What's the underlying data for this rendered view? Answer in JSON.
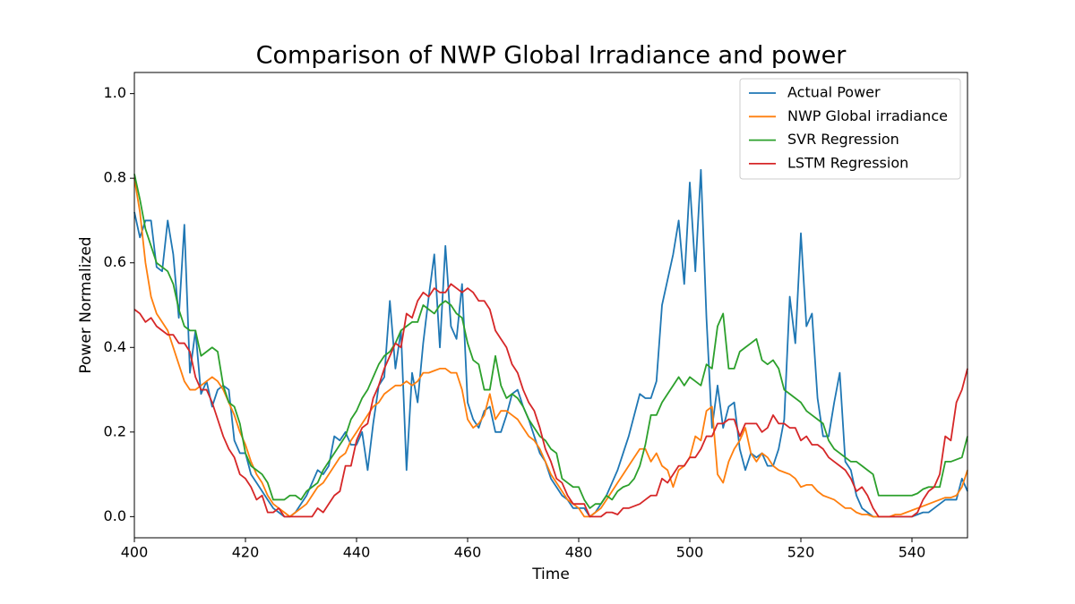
{
  "chart_data": {
    "type": "line",
    "title": "Comparison of NWP Global Irradiance and power",
    "x_label": "Time",
    "y_label": "Power Normalized",
    "x": [
      400,
      401,
      402,
      403,
      404,
      405,
      406,
      407,
      408,
      409,
      410,
      411,
      412,
      413,
      414,
      415,
      416,
      417,
      418,
      419,
      420,
      421,
      422,
      423,
      424,
      425,
      426,
      427,
      428,
      429,
      430,
      431,
      432,
      433,
      434,
      435,
      436,
      437,
      438,
      439,
      440,
      441,
      442,
      443,
      444,
      445,
      446,
      447,
      448,
      449,
      450,
      451,
      452,
      453,
      454,
      455,
      456,
      457,
      458,
      459,
      460,
      461,
      462,
      463,
      464,
      465,
      466,
      467,
      468,
      469,
      470,
      471,
      472,
      473,
      474,
      475,
      476,
      477,
      478,
      479,
      480,
      481,
      482,
      483,
      484,
      485,
      486,
      487,
      488,
      489,
      490,
      491,
      492,
      493,
      494,
      495,
      496,
      497,
      498,
      499,
      500,
      501,
      502,
      503,
      504,
      505,
      506,
      507,
      508,
      509,
      510,
      511,
      512,
      513,
      514,
      515,
      516,
      517,
      518,
      519,
      520,
      521,
      522,
      523,
      524,
      525,
      526,
      527,
      528,
      529,
      530,
      531,
      532,
      533,
      534,
      535,
      536,
      537,
      538,
      539,
      540,
      541,
      542,
      543,
      544,
      545,
      546,
      547,
      548,
      549,
      550
    ],
    "series": [
      {
        "name": "Actual Power",
        "color": "#1f77b4",
        "values": [
          0.72,
          0.66,
          0.7,
          0.7,
          0.59,
          0.58,
          0.7,
          0.62,
          0.47,
          0.69,
          0.34,
          0.44,
          0.29,
          0.32,
          0.26,
          0.3,
          0.31,
          0.3,
          0.18,
          0.15,
          0.15,
          0.1,
          0.08,
          0.06,
          0.04,
          0.02,
          0.01,
          0.0,
          0.0,
          0.01,
          0.03,
          0.05,
          0.08,
          0.11,
          0.1,
          0.12,
          0.19,
          0.18,
          0.2,
          0.17,
          0.17,
          0.2,
          0.11,
          0.22,
          0.31,
          0.33,
          0.51,
          0.35,
          0.44,
          0.11,
          0.34,
          0.27,
          0.41,
          0.52,
          0.62,
          0.4,
          0.64,
          0.45,
          0.42,
          0.55,
          0.27,
          0.23,
          0.21,
          0.25,
          0.26,
          0.2,
          0.2,
          0.24,
          0.29,
          0.3,
          0.26,
          0.23,
          0.19,
          0.15,
          0.13,
          0.09,
          0.07,
          0.05,
          0.04,
          0.02,
          0.02,
          0.02,
          0.0,
          0.01,
          0.03,
          0.05,
          0.08,
          0.11,
          0.15,
          0.19,
          0.24,
          0.29,
          0.28,
          0.28,
          0.32,
          0.5,
          0.56,
          0.62,
          0.7,
          0.55,
          0.79,
          0.58,
          0.82,
          0.47,
          0.21,
          0.31,
          0.21,
          0.26,
          0.27,
          0.16,
          0.11,
          0.15,
          0.14,
          0.15,
          0.12,
          0.12,
          0.16,
          0.23,
          0.52,
          0.41,
          0.67,
          0.45,
          0.48,
          0.28,
          0.19,
          0.19,
          0.27,
          0.34,
          0.13,
          0.11,
          0.05,
          0.02,
          0.01,
          0,
          0,
          0,
          0,
          0,
          0,
          0,
          0,
          0.005,
          0.01,
          0.01,
          0.02,
          0.03,
          0.04,
          0.04,
          0.04,
          0.09,
          0.06
        ]
      },
      {
        "name": "NWP Global irradiance",
        "color": "#ff7f0e",
        "values": [
          0.8,
          0.72,
          0.6,
          0.52,
          0.48,
          0.46,
          0.44,
          0.4,
          0.36,
          0.32,
          0.3,
          0.3,
          0.31,
          0.32,
          0.33,
          0.32,
          0.3,
          0.27,
          0.24,
          0.2,
          0.17,
          0.13,
          0.1,
          0.08,
          0.05,
          0.03,
          0.02,
          0.01,
          0.0,
          0.01,
          0.02,
          0.03,
          0.05,
          0.07,
          0.08,
          0.1,
          0.12,
          0.14,
          0.15,
          0.18,
          0.2,
          0.22,
          0.24,
          0.26,
          0.27,
          0.29,
          0.3,
          0.31,
          0.31,
          0.32,
          0.31,
          0.32,
          0.34,
          0.34,
          0.345,
          0.35,
          0.35,
          0.34,
          0.34,
          0.3,
          0.23,
          0.21,
          0.22,
          0.24,
          0.29,
          0.23,
          0.25,
          0.25,
          0.24,
          0.23,
          0.21,
          0.19,
          0.18,
          0.16,
          0.13,
          0.1,
          0.08,
          0.06,
          0.04,
          0.03,
          0.02,
          0.0,
          0.0,
          0.01,
          0.02,
          0.04,
          0.06,
          0.08,
          0.1,
          0.12,
          0.14,
          0.16,
          0.16,
          0.13,
          0.15,
          0.12,
          0.11,
          0.07,
          0.11,
          0.12,
          0.14,
          0.19,
          0.18,
          0.25,
          0.26,
          0.1,
          0.08,
          0.13,
          0.16,
          0.18,
          0.21,
          0.15,
          0.13,
          0.15,
          0.14,
          0.12,
          0.11,
          0.105,
          0.1,
          0.09,
          0.07,
          0.075,
          0.075,
          0.06,
          0.05,
          0.045,
          0.04,
          0.03,
          0.02,
          0.02,
          0.01,
          0.005,
          0.005,
          0,
          0,
          0,
          0,
          0.005,
          0.005,
          0.01,
          0.015,
          0.02,
          0.025,
          0.03,
          0.035,
          0.04,
          0.045,
          0.045,
          0.05,
          0.07,
          0.11
        ]
      },
      {
        "name": "SVR Regression",
        "color": "#2ca02c",
        "values": [
          0.81,
          0.75,
          0.68,
          0.64,
          0.6,
          0.59,
          0.58,
          0.55,
          0.49,
          0.45,
          0.44,
          0.44,
          0.38,
          0.39,
          0.4,
          0.39,
          0.31,
          0.27,
          0.26,
          0.22,
          0.15,
          0.12,
          0.11,
          0.1,
          0.08,
          0.04,
          0.04,
          0.04,
          0.05,
          0.05,
          0.04,
          0.06,
          0.07,
          0.08,
          0.11,
          0.13,
          0.15,
          0.17,
          0.19,
          0.23,
          0.25,
          0.28,
          0.3,
          0.33,
          0.36,
          0.38,
          0.39,
          0.41,
          0.44,
          0.45,
          0.46,
          0.46,
          0.5,
          0.49,
          0.48,
          0.5,
          0.51,
          0.5,
          0.48,
          0.47,
          0.41,
          0.37,
          0.36,
          0.3,
          0.3,
          0.38,
          0.31,
          0.28,
          0.29,
          0.28,
          0.26,
          0.23,
          0.21,
          0.19,
          0.18,
          0.16,
          0.15,
          0.09,
          0.08,
          0.07,
          0.07,
          0.04,
          0.02,
          0.03,
          0.03,
          0.05,
          0.04,
          0.06,
          0.07,
          0.075,
          0.09,
          0.12,
          0.17,
          0.24,
          0.24,
          0.27,
          0.29,
          0.31,
          0.33,
          0.31,
          0.33,
          0.32,
          0.31,
          0.36,
          0.35,
          0.45,
          0.48,
          0.35,
          0.35,
          0.39,
          0.4,
          0.41,
          0.42,
          0.37,
          0.36,
          0.37,
          0.35,
          0.3,
          0.29,
          0.28,
          0.27,
          0.25,
          0.24,
          0.23,
          0.22,
          0.18,
          0.16,
          0.15,
          0.14,
          0.13,
          0.13,
          0.12,
          0.11,
          0.1,
          0.05,
          0.05,
          0.05,
          0.05,
          0.05,
          0.05,
          0.05,
          0.055,
          0.065,
          0.07,
          0.07,
          0.07,
          0.13,
          0.13,
          0.135,
          0.14,
          0.19
        ]
      },
      {
        "name": "LSTM Regression",
        "color": "#d62728",
        "values": [
          0.49,
          0.48,
          0.46,
          0.47,
          0.45,
          0.44,
          0.43,
          0.43,
          0.41,
          0.41,
          0.39,
          0.33,
          0.3,
          0.3,
          0.27,
          0.23,
          0.19,
          0.16,
          0.14,
          0.1,
          0.09,
          0.07,
          0.04,
          0.05,
          0.01,
          0.01,
          0.02,
          0.0,
          0.0,
          0.0,
          0.0,
          0.0,
          0.0,
          0.02,
          0.01,
          0.03,
          0.05,
          0.06,
          0.12,
          0.12,
          0.18,
          0.21,
          0.22,
          0.28,
          0.31,
          0.35,
          0.38,
          0.41,
          0.4,
          0.48,
          0.47,
          0.51,
          0.53,
          0.52,
          0.54,
          0.53,
          0.53,
          0.55,
          0.54,
          0.53,
          0.54,
          0.53,
          0.51,
          0.51,
          0.49,
          0.44,
          0.42,
          0.4,
          0.36,
          0.34,
          0.3,
          0.27,
          0.25,
          0.21,
          0.16,
          0.13,
          0.09,
          0.08,
          0.05,
          0.03,
          0.03,
          0.03,
          0.0,
          0.0,
          0.0,
          0.01,
          0.01,
          0.005,
          0.02,
          0.02,
          0.025,
          0.03,
          0.04,
          0.05,
          0.05,
          0.09,
          0.08,
          0.1,
          0.12,
          0.12,
          0.14,
          0.14,
          0.16,
          0.19,
          0.19,
          0.22,
          0.22,
          0.23,
          0.23,
          0.19,
          0.22,
          0.22,
          0.22,
          0.2,
          0.21,
          0.24,
          0.22,
          0.22,
          0.21,
          0.21,
          0.18,
          0.19,
          0.17,
          0.17,
          0.16,
          0.14,
          0.13,
          0.12,
          0.11,
          0.09,
          0.06,
          0.07,
          0.05,
          0.02,
          0,
          0,
          0,
          0,
          0,
          0,
          0,
          0.01,
          0.04,
          0.06,
          0.07,
          0.1,
          0.19,
          0.18,
          0.27,
          0.3,
          0.35
        ]
      }
    ],
    "xlim": [
      400,
      550
    ],
    "ylim": [
      -0.05,
      1.05
    ],
    "xticks": [
      400,
      420,
      440,
      460,
      480,
      500,
      520,
      540
    ],
    "yticks": [
      {
        "value": 0,
        "label": "0.0"
      },
      0.2,
      0.4,
      0.6,
      0.8,
      {
        "value": 1,
        "label": "1.0"
      }
    ],
    "grid": false,
    "legend": "upper right"
  }
}
